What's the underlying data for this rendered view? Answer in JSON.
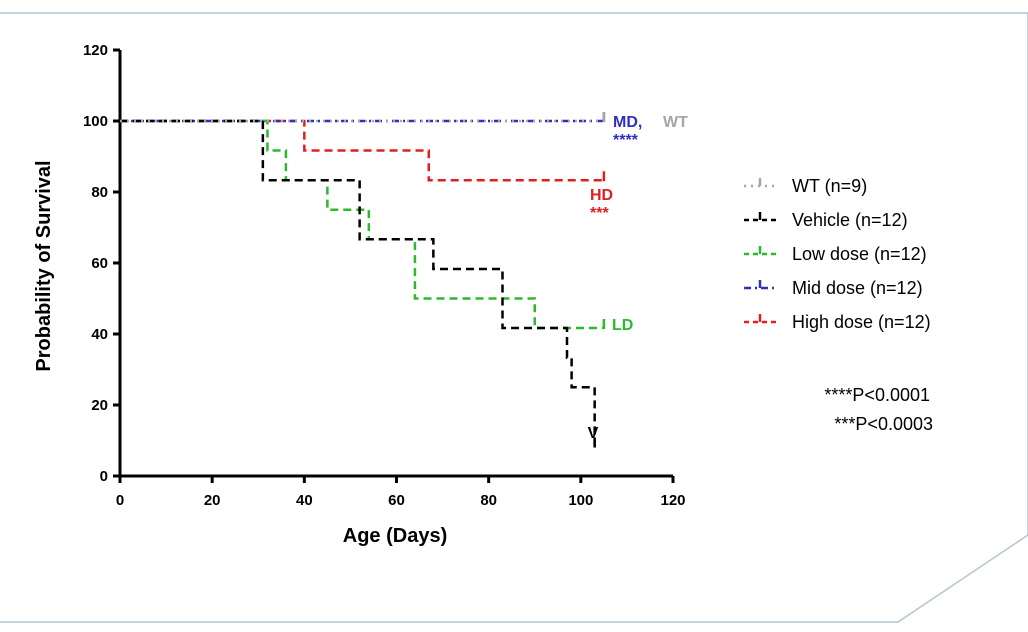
{
  "chart_data": {
    "type": "line",
    "subtype": "kaplan-meier survival",
    "xlabel": "Age (Days)",
    "ylabel": "Probability of Survival",
    "xlim": [
      0,
      120
    ],
    "ylim": [
      0,
      120
    ],
    "xticks": [
      "0",
      "20",
      "40",
      "60",
      "80",
      "100",
      "120"
    ],
    "yticks": [
      "0",
      "20",
      "40",
      "60",
      "80",
      "100",
      "120"
    ],
    "series": [
      {
        "name": "WT (n=9)",
        "color": "#a6a6a6",
        "steps": [
          [
            0,
            100
          ],
          [
            105,
            100
          ]
        ],
        "end_label": "WT"
      },
      {
        "name": "Vehicle (n=12)",
        "color": "#000000",
        "steps": [
          [
            0,
            100
          ],
          [
            31,
            83.3
          ],
          [
            52,
            66.7
          ],
          [
            68,
            58.3
          ],
          [
            83,
            41.7
          ],
          [
            97,
            33.3
          ],
          [
            98,
            25
          ],
          [
            103,
            8.3
          ]
        ],
        "end_label": "V"
      },
      {
        "name": "Low dose (n=12)",
        "color": "#2db82d",
        "steps": [
          [
            0,
            100
          ],
          [
            32,
            91.7
          ],
          [
            36,
            83.3
          ],
          [
            45,
            75
          ],
          [
            54,
            66.7
          ],
          [
            64,
            50
          ],
          [
            90,
            41.7
          ],
          [
            105,
            41.7
          ]
        ],
        "end_label": "LD"
      },
      {
        "name": "Mid dose (n=12)",
        "color": "#2f2fc4",
        "steps": [
          [
            0,
            100
          ],
          [
            105,
            100
          ]
        ],
        "end_label": "MD,",
        "sig": "****"
      },
      {
        "name": "High dose (n=12)",
        "color": "#e02020",
        "steps": [
          [
            0,
            100
          ],
          [
            40,
            91.7
          ],
          [
            67,
            83.3
          ],
          [
            105,
            83.3
          ]
        ],
        "end_label": "HD",
        "sig": "***"
      }
    ],
    "legend": [
      "WT (n=9)",
      "Vehicle (n=12)",
      "Low dose (n=12)",
      "Mid dose (n=12)",
      "High dose (n=12)"
    ],
    "legend_position": "right",
    "annotations": [
      "****P<0.0001",
      "***P<0.0003"
    ]
  }
}
